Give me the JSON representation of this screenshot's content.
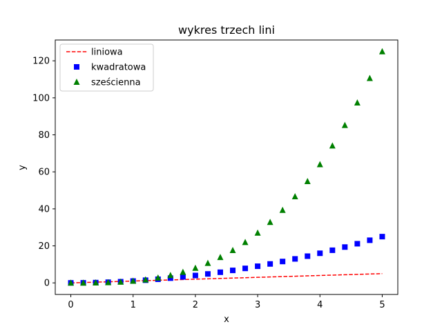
{
  "chart_data": {
    "type": "line",
    "title": "wykres trzech lini",
    "xlabel": "x",
    "ylabel": "y",
    "xlim": [
      -0.25,
      5.25
    ],
    "ylim": [
      -6.25,
      131.25
    ],
    "grid": false,
    "legend_position": "top-left",
    "x_ticks": [
      0,
      1,
      2,
      3,
      4,
      5
    ],
    "y_ticks": [
      0,
      20,
      40,
      60,
      80,
      100,
      120
    ],
    "x_tick_labels": [
      "0",
      "1",
      "2",
      "3",
      "4",
      "5"
    ],
    "y_tick_labels": [
      "0",
      "20",
      "40",
      "60",
      "80",
      "100",
      "120"
    ],
    "x": [
      0.0,
      0.2,
      0.4,
      0.6,
      0.8,
      1.0,
      1.2,
      1.4,
      1.6,
      1.8,
      2.0,
      2.2,
      2.4,
      2.6,
      2.8,
      3.0,
      3.2,
      3.4,
      3.6,
      3.8,
      4.0,
      4.2,
      4.4,
      4.6,
      4.8,
      5.0
    ],
    "series": [
      {
        "name": "liniowa",
        "style": "dashed-line",
        "color": "#ff0000",
        "values": [
          0.0,
          0.2,
          0.4,
          0.6,
          0.8,
          1.0,
          1.2,
          1.4,
          1.6,
          1.8,
          2.0,
          2.2,
          2.4,
          2.6,
          2.8,
          3.0,
          3.2,
          3.4,
          3.6,
          3.8,
          4.0,
          4.2,
          4.4,
          4.6,
          4.8,
          5.0
        ]
      },
      {
        "name": "kwadratowa",
        "style": "square-marker",
        "color": "#0000ff",
        "values": [
          0.0,
          0.04,
          0.16,
          0.36,
          0.64,
          1.0,
          1.44,
          1.96,
          2.56,
          3.24,
          4.0,
          4.84,
          5.76,
          6.76,
          7.84,
          9.0,
          10.24,
          11.56,
          12.96,
          14.44,
          16.0,
          17.64,
          19.36,
          21.16,
          23.04,
          25.0
        ]
      },
      {
        "name": "sześcienna",
        "style": "triangle-marker",
        "color": "#008000",
        "values": [
          0.0,
          0.008,
          0.064,
          0.216,
          0.512,
          1.0,
          1.728,
          2.744,
          4.096,
          5.832,
          8.0,
          10.648,
          13.824,
          17.576,
          21.952,
          27.0,
          32.768,
          39.304,
          46.656,
          54.872,
          64.0,
          74.088,
          85.184,
          97.336,
          110.592,
          125.0
        ]
      }
    ]
  }
}
